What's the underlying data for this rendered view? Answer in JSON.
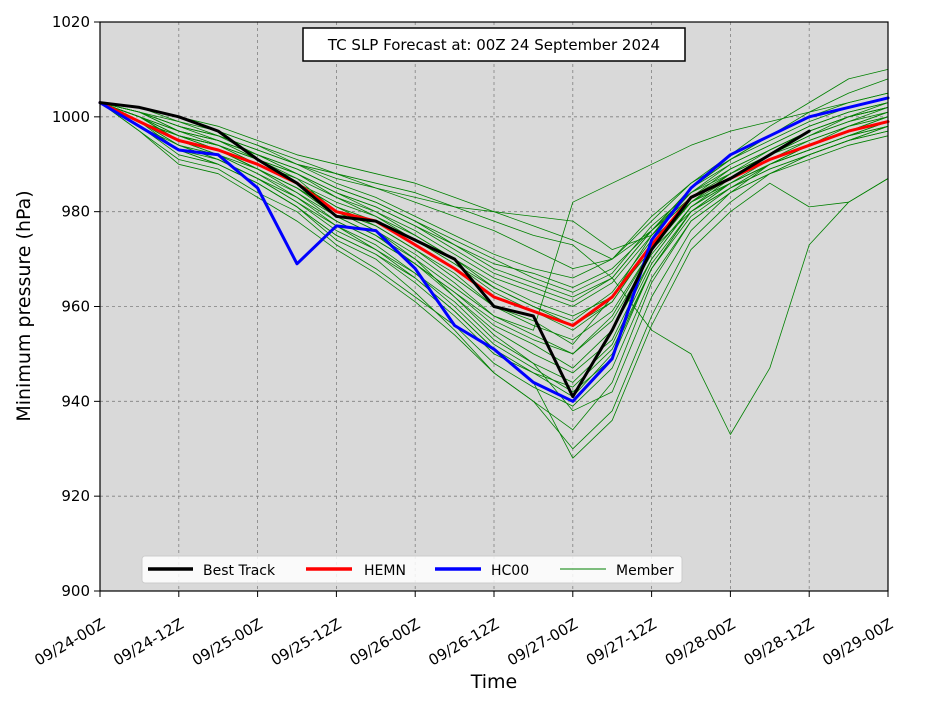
{
  "chart_data": {
    "type": "line",
    "title": "TC SLP Forecast at: 00Z 24 September 2024",
    "xlabel": "Time",
    "ylabel": "Minimum pressure (hPa)",
    "xlim": [
      0,
      120
    ],
    "ylim": [
      900,
      1020
    ],
    "x_ticks": [
      {
        "x": 0,
        "label": "09/24-00Z"
      },
      {
        "x": 12,
        "label": "09/24-12Z"
      },
      {
        "x": 24,
        "label": "09/25-00Z"
      },
      {
        "x": 36,
        "label": "09/25-12Z"
      },
      {
        "x": 48,
        "label": "09/26-00Z"
      },
      {
        "x": 60,
        "label": "09/26-12Z"
      },
      {
        "x": 72,
        "label": "09/27-00Z"
      },
      {
        "x": 84,
        "label": "09/27-12Z"
      },
      {
        "x": 96,
        "label": "09/28-00Z"
      },
      {
        "x": 108,
        "label": "09/28-12Z"
      },
      {
        "x": 120,
        "label": "09/29-00Z"
      }
    ],
    "y_ticks": [
      900,
      920,
      940,
      960,
      980,
      1000,
      1020
    ],
    "grid": true,
    "legend_position": "bottom-left",
    "background_color": "#d9d9d9",
    "series": [
      {
        "name": "Best Track",
        "color": "#000000",
        "width": 3,
        "x": [
          0,
          6,
          12,
          18,
          24,
          30,
          36,
          42,
          48,
          54,
          60,
          66,
          72,
          78,
          84,
          90,
          96,
          102,
          108
        ],
        "y": [
          1003,
          1002,
          1000,
          997,
          991,
          986,
          979,
          978,
          974,
          970,
          960,
          958,
          941,
          955,
          972,
          983,
          987,
          992,
          997
        ]
      },
      {
        "name": "HEMN",
        "color": "#ff0000",
        "width": 3,
        "x": [
          0,
          6,
          12,
          18,
          24,
          30,
          36,
          42,
          48,
          54,
          60,
          66,
          72,
          78,
          84,
          90,
          96,
          102,
          108,
          114,
          120
        ],
        "y": [
          1003,
          999,
          995,
          993,
          990,
          986,
          980,
          978,
          973,
          968,
          962,
          959,
          956,
          962,
          973,
          983,
          987,
          991,
          994,
          997,
          999
        ]
      },
      {
        "name": "HC00",
        "color": "#0000ff",
        "width": 3,
        "x": [
          0,
          6,
          12,
          18,
          24,
          30,
          36,
          42,
          48,
          54,
          60,
          66,
          72,
          78,
          84,
          90,
          96,
          102,
          108,
          114,
          120
        ],
        "y": [
          1003,
          998,
          993,
          992,
          985,
          969,
          977,
          976,
          968,
          956,
          951,
          944,
          940,
          949,
          974,
          985,
          992,
          996,
          1000,
          1002,
          1004
        ]
      }
    ],
    "member_legend": {
      "name": "Member",
      "color": "#008000",
      "width": 0.8
    },
    "members": [
      [
        1003,
        1000,
        996,
        994,
        990,
        987,
        980,
        977,
        972,
        967,
        960,
        957,
        952,
        962,
        975,
        984,
        988,
        992,
        995,
        998,
        1000
      ],
      [
        1003,
        999,
        994,
        991,
        987,
        983,
        978,
        974,
        969,
        963,
        957,
        953,
        950,
        958,
        972,
        982,
        986,
        990,
        993,
        996,
        999
      ],
      [
        1003,
        1001,
        998,
        995,
        992,
        989,
        985,
        982,
        978,
        973,
        968,
        965,
        962,
        966,
        976,
        985,
        990,
        994,
        998,
        1001,
        1003
      ],
      [
        1003,
        998,
        992,
        990,
        986,
        981,
        975,
        971,
        965,
        958,
        950,
        946,
        941,
        950,
        968,
        980,
        986,
        990,
        994,
        997,
        1000
      ],
      [
        1003,
        1000,
        996,
        993,
        989,
        985,
        980,
        976,
        970,
        962,
        954,
        948,
        938,
        942,
        962,
        976,
        984,
        990,
        994,
        998,
        1001
      ],
      [
        1003,
        1002,
        1000,
        997,
        994,
        991,
        988,
        985,
        982,
        979,
        976,
        972,
        968,
        970,
        978,
        986,
        992,
        998,
        1003,
        1008,
        1010
      ],
      [
        1003,
        997,
        990,
        988,
        983,
        978,
        972,
        967,
        961,
        954,
        946,
        940,
        930,
        938,
        958,
        974,
        982,
        988,
        992,
        995,
        998
      ],
      [
        1003,
        1001,
        998,
        996,
        993,
        990,
        987,
        985,
        983,
        981,
        980,
        979,
        978,
        972,
        975,
        985,
        991,
        996,
        1000,
        1003,
        1005
      ],
      [
        1003,
        999,
        995,
        993,
        990,
        986,
        981,
        978,
        974,
        969,
        964,
        960,
        957,
        963,
        974,
        982,
        986,
        990,
        993,
        996,
        998
      ],
      [
        1003,
        1000,
        997,
        995,
        992,
        988,
        984,
        981,
        977,
        973,
        969,
        967,
        964,
        968,
        976,
        983,
        988,
        992,
        996,
        999,
        1002
      ],
      [
        1003,
        998,
        993,
        991,
        987,
        982,
        976,
        972,
        967,
        961,
        953,
        948,
        944,
        952,
        969,
        980,
        985,
        989,
        992,
        995,
        997
      ],
      [
        1003,
        1001,
        999,
        996,
        993,
        990,
        988,
        986,
        984,
        981,
        978,
        975,
        973,
        966,
        955,
        950,
        933,
        947,
        973,
        982,
        987
      ],
      [
        1003,
        999,
        996,
        994,
        991,
        987,
        983,
        980,
        975,
        970,
        965,
        961,
        958,
        962,
        972,
        980,
        986,
        991,
        995,
        998,
        1001
      ],
      [
        1003,
        1000,
        995,
        993,
        989,
        985,
        979,
        975,
        969,
        963,
        956,
        952,
        947,
        955,
        970,
        981,
        987,
        992,
        996,
        1000,
        1003
      ],
      [
        1003,
        1002,
        999,
        997,
        994,
        990,
        986,
        983,
        979,
        975,
        971,
        968,
        966,
        970,
        979,
        986,
        991,
        995,
        999,
        1002,
        1004
      ],
      [
        1003,
        997,
        991,
        989,
        984,
        980,
        973,
        968,
        962,
        956,
        948,
        943,
        939,
        947,
        966,
        978,
        984,
        988,
        991,
        994,
        996
      ],
      [
        1003,
        1001,
        997,
        995,
        991,
        988,
        984,
        980,
        976,
        971,
        966,
        963,
        960,
        965,
        975,
        983,
        989,
        993,
        997,
        1000,
        1002
      ],
      [
        1003,
        999,
        994,
        992,
        988,
        984,
        978,
        974,
        969,
        962,
        955,
        950,
        946,
        953,
        970,
        981,
        986,
        990,
        994,
        997,
        999
      ],
      [
        1003,
        1000,
        997,
        994,
        991,
        988,
        983,
        979,
        975,
        970,
        964,
        960,
        956,
        961,
        973,
        982,
        987,
        991,
        994,
        997,
        1000
      ],
      [
        1003,
        998,
        993,
        990,
        986,
        981,
        974,
        970,
        963,
        955,
        946,
        940,
        934,
        944,
        965,
        978,
        984,
        988,
        992,
        995,
        998
      ],
      [
        1003,
        1001,
        998,
        996,
        992,
        989,
        985,
        982,
        978,
        974,
        970,
        966,
        963,
        967,
        977,
        984,
        990,
        994,
        998,
        1001,
        1003
      ],
      [
        1003,
        999,
        995,
        992,
        989,
        984,
        979,
        975,
        970,
        964,
        958,
        954,
        950,
        957,
        971,
        981,
        986,
        990,
        993,
        996,
        999
      ],
      [
        1003,
        1000,
        996,
        994,
        990,
        986,
        981,
        977,
        972,
        966,
        960,
        956,
        953,
        959,
        972,
        982,
        988,
        993,
        997,
        1000,
        1002
      ],
      [
        1003,
        998,
        994,
        991,
        987,
        982,
        977,
        973,
        967,
        960,
        952,
        947,
        942,
        949,
        968,
        979,
        985,
        989,
        992,
        995,
        997
      ],
      [
        1003,
        1002,
        1000,
        998,
        995,
        992,
        990,
        988,
        986,
        983,
        980,
        977,
        974,
        970,
        976,
        985,
        991,
        996,
        1001,
        1005,
        1008
      ],
      [
        1003,
        1000,
        995,
        992,
        988,
        983,
        977,
        972,
        966,
        959,
        951,
        944,
        928,
        936,
        956,
        972,
        980,
        986,
        981,
        982,
        987
      ],
      [
        1003,
        999,
        996,
        993,
        990,
        986,
        982,
        979,
        974,
        969,
        963,
        959,
        955,
        961,
        973,
        982,
        988,
        992,
        996,
        999,
        1001
      ],
      [
        1003,
        1001,
        997,
        995,
        992,
        988,
        984,
        981,
        977,
        972,
        967,
        964,
        961,
        966,
        976,
        984,
        989,
        993,
        997,
        1000,
        1002
      ],
      [
        1003,
        1000,
        995,
        993,
        989,
        985,
        980,
        976,
        971,
        965,
        958,
        955,
        982,
        986,
        990,
        994,
        997,
        999,
        1001,
        1003,
        1005
      ],
      [
        1003,
        999,
        993,
        990,
        986,
        981,
        975,
        971,
        966,
        959,
        951,
        946,
        943,
        951,
        968,
        980,
        985,
        990,
        993,
        996,
        998
      ]
    ]
  }
}
